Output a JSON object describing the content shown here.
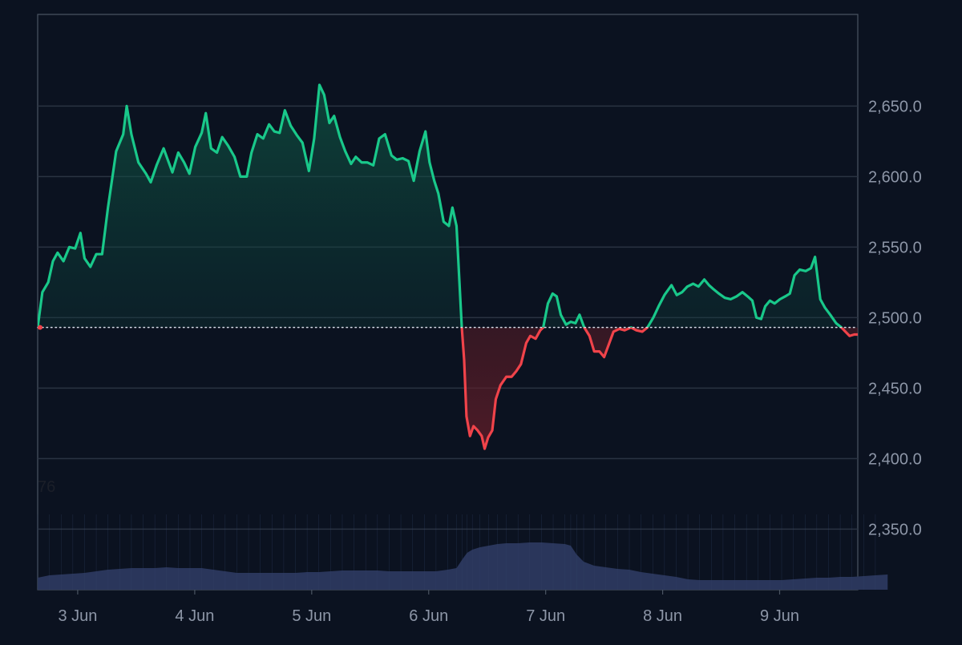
{
  "chart_data": {
    "type": "area",
    "title": "",
    "xlabel": "",
    "ylabel": "",
    "baseline": 2493,
    "ylim": [
      2307,
      2715
    ],
    "xlim": [
      0,
      140
    ],
    "grid": true,
    "legend": "none",
    "ticks": {
      "x": [
        "3 Jun",
        "4 Jun",
        "5 Jun",
        "6 Jun",
        "7 Jun",
        "8 Jun",
        "9 Jun"
      ],
      "y": [
        "2,650.0",
        "2,600.0",
        "2,550.0",
        "2,500.0",
        "2,450.0",
        "2,400.0",
        "2,350.0"
      ]
    },
    "tick_values": {
      "x": [
        6.83,
        26.81,
        46.78,
        66.75,
        86.72,
        106.69,
        126.66
      ],
      "y": [
        2650,
        2600,
        2550,
        2500,
        2450,
        2400,
        2350
      ]
    },
    "series": [
      {
        "values": [
          [
            0,
            2493
          ],
          [
            0.8,
            2518
          ],
          [
            1.8,
            2525
          ],
          [
            2.6,
            2540
          ],
          [
            3.4,
            2546
          ],
          [
            4.4,
            2540
          ],
          [
            5.4,
            2550
          ],
          [
            6.4,
            2549
          ],
          [
            7.3,
            2560
          ],
          [
            8.0,
            2542
          ],
          [
            9.0,
            2536
          ],
          [
            10.0,
            2545
          ],
          [
            11.0,
            2545
          ],
          [
            12.0,
            2578
          ],
          [
            13.4,
            2618
          ],
          [
            14.6,
            2630
          ],
          [
            15.2,
            2650
          ],
          [
            16.0,
            2630
          ],
          [
            17.2,
            2610
          ],
          [
            18.5,
            2602
          ],
          [
            19.3,
            2596
          ],
          [
            20.3,
            2608
          ],
          [
            21.5,
            2620
          ],
          [
            22.2,
            2612
          ],
          [
            23.0,
            2603
          ],
          [
            24.0,
            2617
          ],
          [
            25.0,
            2610
          ],
          [
            25.9,
            2602
          ],
          [
            26.9,
            2621
          ],
          [
            28.0,
            2631
          ],
          [
            28.7,
            2645
          ],
          [
            29.6,
            2620
          ],
          [
            30.6,
            2617
          ],
          [
            31.5,
            2628
          ],
          [
            32.5,
            2622
          ],
          [
            33.6,
            2614
          ],
          [
            34.6,
            2600
          ],
          [
            35.7,
            2600
          ],
          [
            36.5,
            2617
          ],
          [
            37.5,
            2630
          ],
          [
            38.5,
            2627
          ],
          [
            39.5,
            2637
          ],
          [
            40.4,
            2632
          ],
          [
            41.3,
            2631
          ],
          [
            42.2,
            2647
          ],
          [
            43.2,
            2636
          ],
          [
            44.3,
            2629
          ],
          [
            45.2,
            2624
          ],
          [
            46.3,
            2604
          ],
          [
            47.2,
            2627
          ],
          [
            48.1,
            2665
          ],
          [
            48.9,
            2658
          ],
          [
            49.8,
            2638
          ],
          [
            50.6,
            2643
          ],
          [
            51.6,
            2628
          ],
          [
            52.5,
            2618
          ],
          [
            53.5,
            2609
          ],
          [
            54.3,
            2614
          ],
          [
            55.3,
            2610
          ],
          [
            56.3,
            2610
          ],
          [
            57.3,
            2608
          ],
          [
            58.3,
            2627
          ],
          [
            59.3,
            2630
          ],
          [
            60.4,
            2615
          ],
          [
            61.3,
            2612
          ],
          [
            62.3,
            2613
          ],
          [
            63.3,
            2611
          ],
          [
            64.2,
            2597
          ],
          [
            65.2,
            2618
          ],
          [
            66.2,
            2632
          ],
          [
            66.9,
            2610
          ],
          [
            67.7,
            2597
          ],
          [
            68.4,
            2588
          ],
          [
            69.3,
            2568
          ],
          [
            70.2,
            2565
          ],
          [
            70.8,
            2578
          ],
          [
            71.5,
            2565
          ],
          [
            72.0,
            2525
          ],
          [
            72.4,
            2493
          ],
          [
            72.8,
            2470
          ],
          [
            73.2,
            2430
          ],
          [
            73.8,
            2416
          ],
          [
            74.4,
            2423
          ],
          [
            75.1,
            2420
          ],
          [
            75.8,
            2416
          ],
          [
            76.3,
            2407
          ],
          [
            76.9,
            2415
          ],
          [
            77.6,
            2420
          ],
          [
            78.2,
            2442
          ],
          [
            79.0,
            2452
          ],
          [
            80.0,
            2458
          ],
          [
            80.9,
            2458
          ],
          [
            81.7,
            2462
          ],
          [
            82.5,
            2467
          ],
          [
            83.4,
            2482
          ],
          [
            84.1,
            2487
          ],
          [
            85.0,
            2485
          ],
          [
            85.8,
            2491
          ],
          [
            86.3,
            2493
          ],
          [
            87.1,
            2510
          ],
          [
            87.9,
            2517
          ],
          [
            88.6,
            2515
          ],
          [
            89.3,
            2502
          ],
          [
            90.2,
            2495
          ],
          [
            91.0,
            2497
          ],
          [
            91.8,
            2496
          ],
          [
            92.5,
            2502
          ],
          [
            93.3,
            2493
          ],
          [
            94.2,
            2487
          ],
          [
            95.0,
            2476
          ],
          [
            95.9,
            2476
          ],
          [
            96.7,
            2472
          ],
          [
            97.5,
            2481
          ],
          [
            98.3,
            2490
          ],
          [
            99.3,
            2492
          ],
          [
            100.2,
            2491
          ],
          [
            101.3,
            2493
          ],
          [
            102.2,
            2491
          ],
          [
            103.2,
            2490
          ],
          [
            104.1,
            2493
          ],
          [
            105.1,
            2500
          ],
          [
            106.0,
            2508
          ],
          [
            107.0,
            2516
          ],
          [
            108.2,
            2523
          ],
          [
            109.1,
            2516
          ],
          [
            110.0,
            2518
          ],
          [
            110.9,
            2522
          ],
          [
            111.9,
            2524
          ],
          [
            112.8,
            2522
          ],
          [
            113.8,
            2527
          ],
          [
            114.6,
            2523
          ],
          [
            115.4,
            2520
          ],
          [
            116.3,
            2517
          ],
          [
            117.3,
            2514
          ],
          [
            118.3,
            2513
          ],
          [
            119.3,
            2515
          ],
          [
            120.3,
            2518
          ],
          [
            121.2,
            2515
          ],
          [
            122.0,
            2512
          ],
          [
            122.7,
            2500
          ],
          [
            123.5,
            2499
          ],
          [
            124.2,
            2508
          ],
          [
            125.0,
            2512
          ],
          [
            125.8,
            2510
          ],
          [
            126.7,
            2513
          ],
          [
            127.6,
            2515
          ],
          [
            128.4,
            2517
          ],
          [
            129.2,
            2530
          ],
          [
            130.1,
            2534
          ],
          [
            131.1,
            2533
          ],
          [
            132.0,
            2535
          ],
          [
            132.7,
            2543
          ],
          [
            133.6,
            2513
          ],
          [
            134.4,
            2507
          ],
          [
            135.3,
            2502
          ],
          [
            136.3,
            2496
          ],
          [
            137.2,
            2493
          ],
          [
            137.9,
            2490
          ],
          [
            138.6,
            2487
          ],
          [
            139.4,
            2488
          ],
          [
            140.2,
            2488
          ],
          [
            141.0,
            2489
          ],
          [
            141.7,
            2492
          ],
          [
            142.3,
            2500
          ],
          [
            143.2,
            2530
          ],
          [
            143.9,
            2544
          ],
          [
            144.6,
            2542
          ],
          [
            145.1,
            2532
          ]
        ]
      },
      {
        "values": [
          [
            0,
            0.15
          ],
          [
            2.0,
            0.18
          ],
          [
            4.0,
            0.19
          ],
          [
            6.0,
            0.2
          ],
          [
            8.0,
            0.21
          ],
          [
            10.0,
            0.23
          ],
          [
            12.0,
            0.25
          ],
          [
            14.0,
            0.26
          ],
          [
            16.0,
            0.27
          ],
          [
            18.0,
            0.27
          ],
          [
            20.0,
            0.27
          ],
          [
            22.0,
            0.28
          ],
          [
            24.0,
            0.27
          ],
          [
            26.0,
            0.27
          ],
          [
            28.0,
            0.27
          ],
          [
            30.0,
            0.25
          ],
          [
            32.0,
            0.23
          ],
          [
            34.0,
            0.21
          ],
          [
            36.0,
            0.21
          ],
          [
            38.0,
            0.21
          ],
          [
            40.0,
            0.21
          ],
          [
            42.0,
            0.21
          ],
          [
            44.0,
            0.21
          ],
          [
            46.0,
            0.22
          ],
          [
            48.0,
            0.22
          ],
          [
            50.0,
            0.23
          ],
          [
            52.0,
            0.24
          ],
          [
            54.0,
            0.24
          ],
          [
            56.0,
            0.24
          ],
          [
            58.0,
            0.24
          ],
          [
            60.0,
            0.23
          ],
          [
            62.0,
            0.23
          ],
          [
            64.0,
            0.23
          ],
          [
            66.0,
            0.23
          ],
          [
            68.0,
            0.23
          ],
          [
            70.0,
            0.25
          ],
          [
            71.5,
            0.27
          ],
          [
            72.5,
            0.38
          ],
          [
            73.3,
            0.46
          ],
          [
            74.2,
            0.5
          ],
          [
            75.5,
            0.53
          ],
          [
            77.0,
            0.55
          ],
          [
            78.5,
            0.57
          ],
          [
            80.0,
            0.58
          ],
          [
            82.0,
            0.58
          ],
          [
            84.0,
            0.59
          ],
          [
            86.0,
            0.59
          ],
          [
            88.0,
            0.58
          ],
          [
            90.0,
            0.57
          ],
          [
            91.0,
            0.55
          ],
          [
            92.0,
            0.44
          ],
          [
            93.2,
            0.35
          ],
          [
            95.0,
            0.3
          ],
          [
            97.0,
            0.28
          ],
          [
            99.0,
            0.26
          ],
          [
            101.0,
            0.25
          ],
          [
            103.0,
            0.22
          ],
          [
            105.0,
            0.2
          ],
          [
            107.0,
            0.18
          ],
          [
            109.0,
            0.16
          ],
          [
            111.0,
            0.13
          ],
          [
            113.0,
            0.12
          ],
          [
            115.0,
            0.12
          ],
          [
            117.0,
            0.12
          ],
          [
            119.0,
            0.12
          ],
          [
            121.0,
            0.12
          ],
          [
            123.0,
            0.12
          ],
          [
            125.0,
            0.12
          ],
          [
            127.0,
            0.12
          ],
          [
            129.0,
            0.13
          ],
          [
            131.0,
            0.14
          ],
          [
            133.0,
            0.15
          ],
          [
            135.0,
            0.15
          ],
          [
            137.0,
            0.16
          ],
          [
            139.0,
            0.16
          ],
          [
            141.0,
            0.17
          ],
          [
            143.0,
            0.18
          ],
          [
            145.1,
            0.19
          ]
        ]
      }
    ],
    "colors": {
      "background": "#0b1220",
      "grid": "#2a3342",
      "axis": "#4b5563",
      "up": "#19c88a",
      "down": "#f0434a",
      "up_fill": "#0f5c47",
      "down_fill": "#6b1f2a",
      "volume": "#2a365b",
      "baseline": "#d8dee9",
      "ticks": "#8d96a7"
    }
  },
  "overlay_label": "76"
}
